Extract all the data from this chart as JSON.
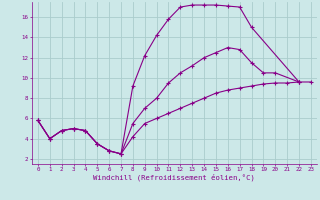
{
  "bg_color": "#cce8e8",
  "line_color": "#880088",
  "grid_color": "#aacccc",
  "xlabel": "Windchill (Refroidissement éolien,°C)",
  "xlabel_color": "#880088",
  "tick_color": "#880088",
  "xlim": [
    -0.5,
    23.5
  ],
  "ylim": [
    1.5,
    17.5
  ],
  "xticks": [
    0,
    1,
    2,
    3,
    4,
    5,
    6,
    7,
    8,
    9,
    10,
    11,
    12,
    13,
    14,
    15,
    16,
    17,
    18,
    19,
    20,
    21,
    22,
    23
  ],
  "yticks": [
    2,
    4,
    6,
    8,
    10,
    12,
    14,
    16
  ],
  "curve1_x": [
    0,
    1,
    2,
    3,
    4,
    5,
    6,
    7,
    8,
    9,
    10,
    11,
    12,
    13,
    14,
    15,
    16,
    17,
    18,
    22
  ],
  "curve1_y": [
    5.8,
    4.0,
    4.8,
    5.0,
    4.8,
    3.5,
    2.8,
    2.5,
    9.2,
    12.2,
    14.2,
    15.8,
    17.0,
    17.2,
    17.2,
    17.2,
    17.1,
    17.0,
    15.0,
    9.6
  ],
  "curve2_x": [
    0,
    1,
    2,
    3,
    4,
    5,
    6,
    7,
    8,
    9,
    10,
    11,
    12,
    13,
    14,
    15,
    16,
    17,
    18,
    19,
    20,
    22
  ],
  "curve2_y": [
    5.8,
    4.0,
    4.8,
    5.0,
    4.8,
    3.5,
    2.8,
    2.5,
    5.5,
    7.0,
    8.0,
    9.5,
    10.5,
    11.2,
    12.0,
    12.5,
    13.0,
    12.8,
    11.5,
    10.5,
    10.5,
    9.6
  ],
  "curve3_x": [
    0,
    1,
    2,
    3,
    4,
    5,
    6,
    7,
    8,
    9,
    10,
    11,
    12,
    13,
    14,
    15,
    16,
    17,
    18,
    19,
    20,
    21,
    22,
    23
  ],
  "curve3_y": [
    5.8,
    4.0,
    4.8,
    5.0,
    4.8,
    3.5,
    2.8,
    2.5,
    4.2,
    5.5,
    6.0,
    6.5,
    7.0,
    7.5,
    8.0,
    8.5,
    8.8,
    9.0,
    9.2,
    9.4,
    9.5,
    9.5,
    9.6,
    9.6
  ]
}
